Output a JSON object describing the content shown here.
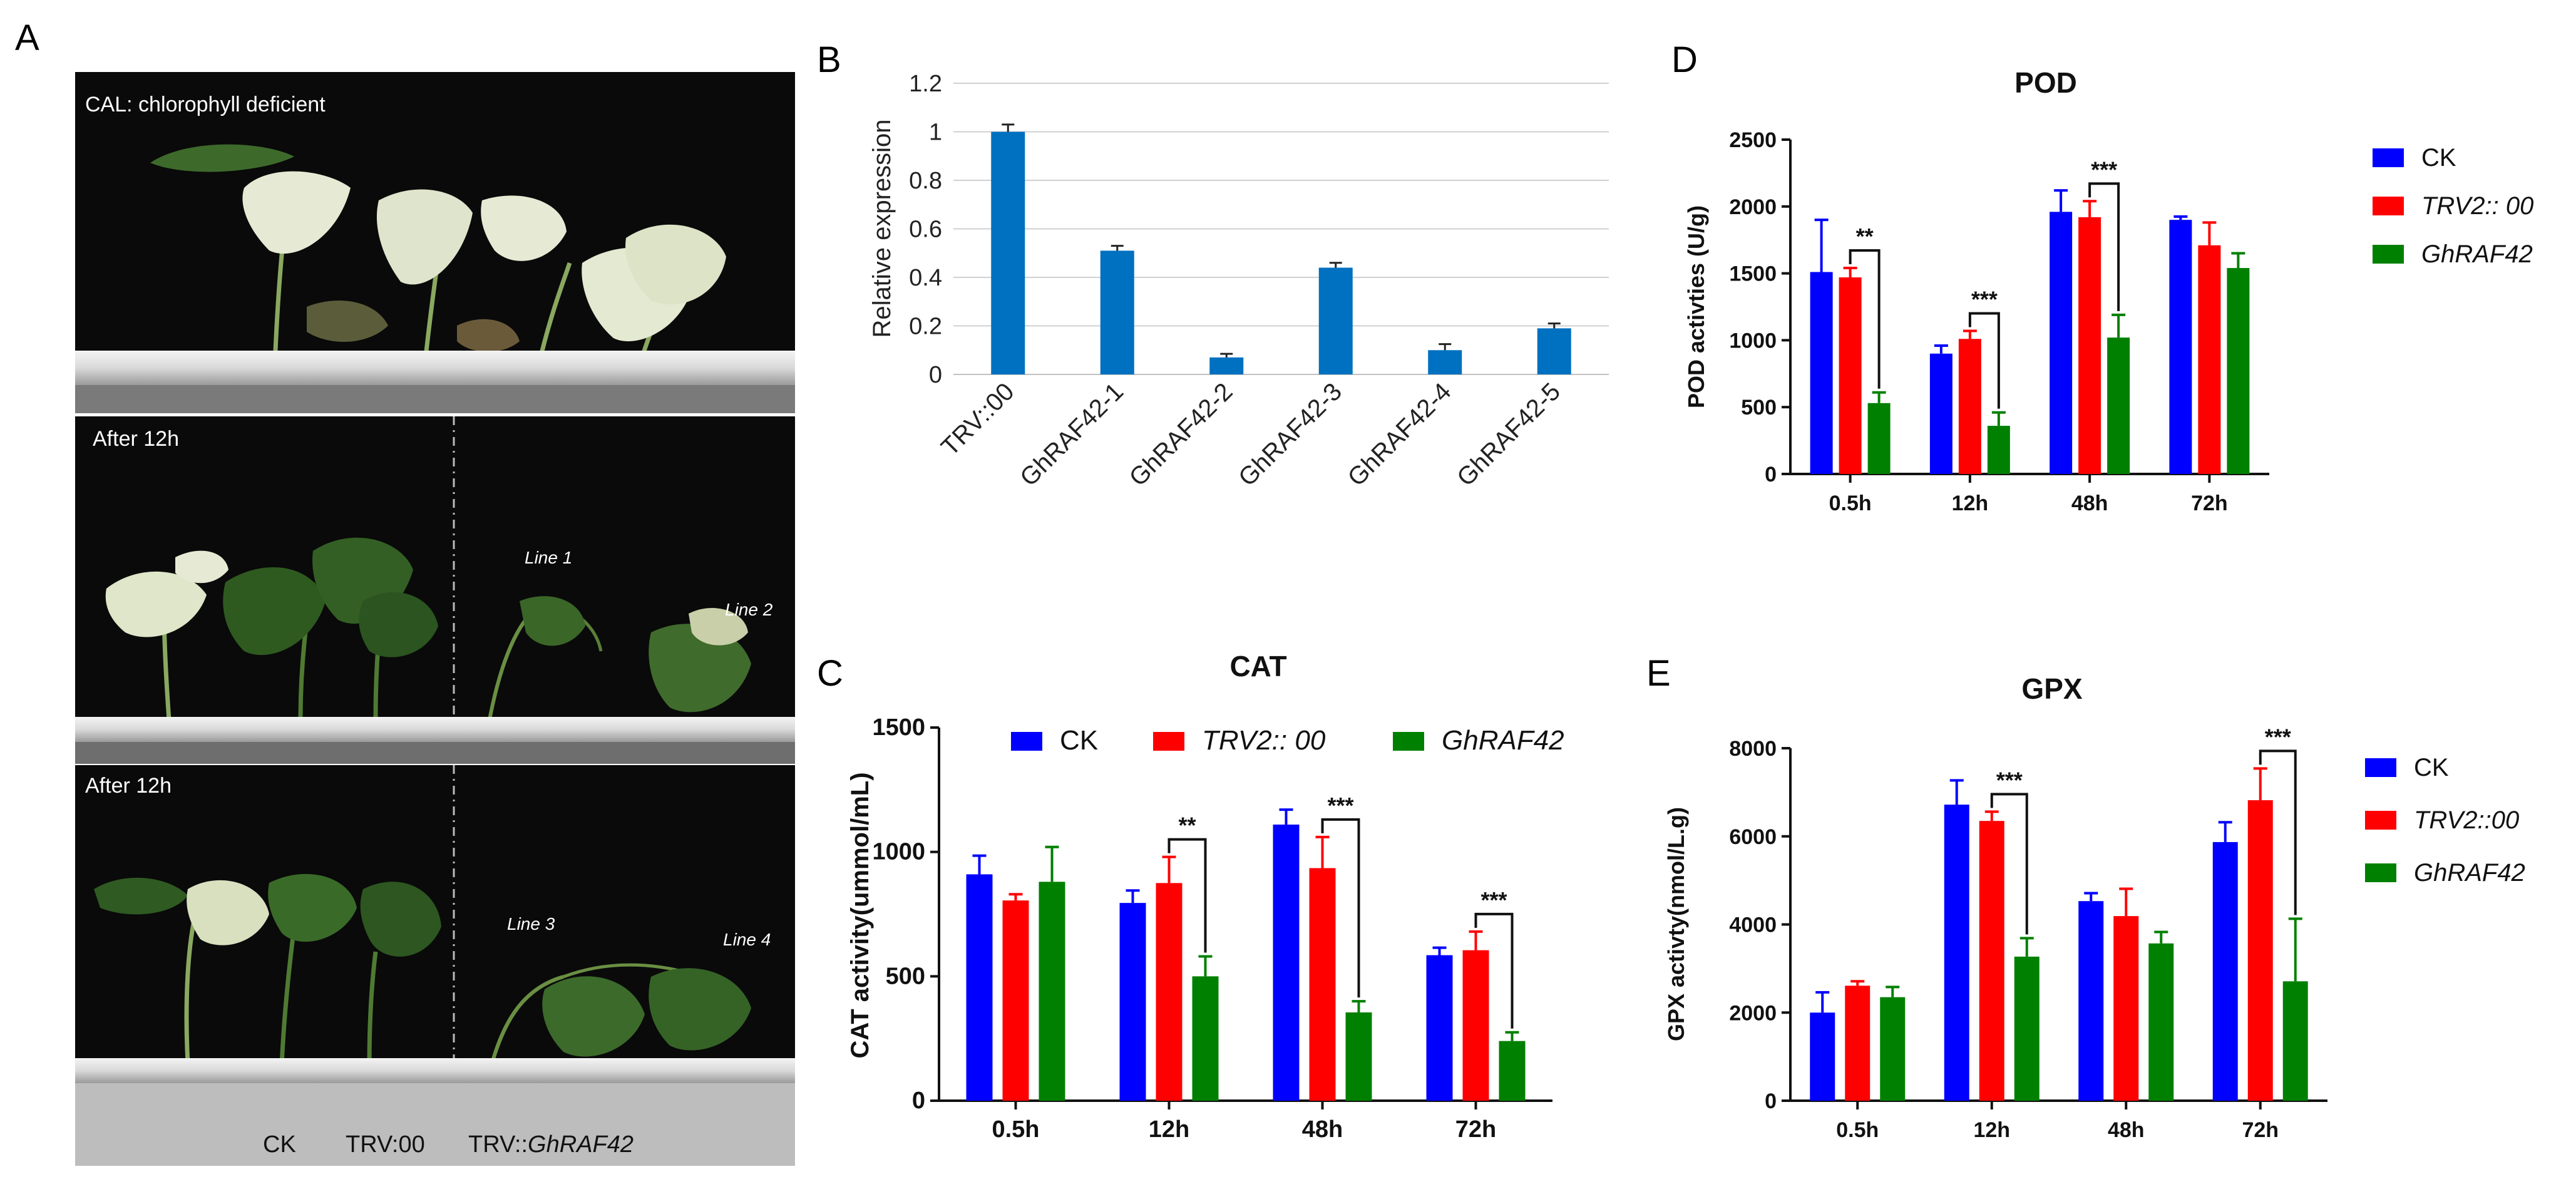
{
  "colors": {
    "ck": "#0000ff",
    "trv": "#ff0000",
    "ghraf": "#008000",
    "bar_b": "#0070c0",
    "photo_bg": "#0c0c0c",
    "leaf_green": "#2f5e22",
    "leaf_variegated": "#e8ecd8"
  },
  "panels": {
    "a": {
      "letter": "A",
      "top_caption": "CAL: chlorophyll  deficient",
      "mid_caption": "After 12h",
      "bottom_caption": "After 12h",
      "line1": "Line 1",
      "line2": "Line 2",
      "line3": "Line 3",
      "line4": "Line 4",
      "label_ck": "CK",
      "label_trv00": "TRV:00",
      "label_trv_prefix": "TRV::",
      "label_trv_gene": "GhRAF42"
    },
    "b": {
      "letter": "B"
    },
    "c": {
      "letter": "C"
    },
    "d": {
      "letter": "D"
    },
    "e": {
      "letter": "E"
    }
  },
  "chart_data": [
    {
      "id": "B",
      "type": "bar",
      "title": "",
      "ylabel": "Relative expression",
      "xlabel": "",
      "ylim": [
        0,
        1.2
      ],
      "yticks": [
        0,
        0.2,
        0.4,
        0.6,
        0.8,
        1,
        1.2
      ],
      "ytick_labels": [
        "0",
        "0.2",
        "0.4",
        "0.6",
        "0.8",
        "1",
        "1.2"
      ],
      "grid": true,
      "categories": [
        "TRV::00",
        "GhRAF42-1",
        "GhRAF42-2",
        "GhRAF42-3",
        "GhRAF42-4",
        "GhRAF42-5"
      ],
      "values": [
        1.0,
        0.51,
        0.07,
        0.44,
        0.1,
        0.19
      ],
      "errors": [
        0.03,
        0.02,
        0.015,
        0.02,
        0.025,
        0.02
      ]
    },
    {
      "id": "C",
      "type": "bar",
      "title": "CAT",
      "ylabel": "CAT activity(ummol/mL)",
      "xlabel": "",
      "ylim": [
        0,
        1500
      ],
      "yticks": [
        0,
        500,
        1000,
        1500
      ],
      "ytick_labels": [
        "0",
        "500",
        "1000",
        "1500"
      ],
      "grid": false,
      "legend_position": "top",
      "categories": [
        "0.5h",
        "12h",
        "48h",
        "72h"
      ],
      "series": [
        {
          "name": "CK",
          "italic": false,
          "values": [
            910,
            795,
            1110,
            585
          ],
          "errors": [
            75,
            50,
            60,
            30
          ]
        },
        {
          "name": "TRV2:: 00",
          "italic": true,
          "values": [
            805,
            875,
            935,
            605
          ],
          "errors": [
            25,
            105,
            125,
            75
          ]
        },
        {
          "name": "GhRAF42",
          "italic": true,
          "values": [
            880,
            500,
            355,
            240
          ],
          "errors": [
            140,
            80,
            45,
            35
          ]
        }
      ],
      "significance": [
        {
          "category": "12h",
          "label": "**"
        },
        {
          "category": "48h",
          "label": "***"
        },
        {
          "category": "72h",
          "label": "***"
        }
      ]
    },
    {
      "id": "D",
      "type": "bar",
      "title": "POD",
      "ylabel": "POD activties (U/g)",
      "xlabel": "",
      "ylim": [
        0,
        2500
      ],
      "yticks": [
        0,
        500,
        1000,
        1500,
        2000,
        2500
      ],
      "ytick_labels": [
        "0",
        "500",
        "1000",
        "1500",
        "2000",
        "2500"
      ],
      "grid": false,
      "legend_position": "right",
      "categories": [
        "0.5h",
        "12h",
        "48h",
        "72h"
      ],
      "series": [
        {
          "name": "CK",
          "italic": false,
          "values": [
            1510,
            900,
            1960,
            1900
          ],
          "errors": [
            390,
            60,
            160,
            25
          ]
        },
        {
          "name": "TRV2:: 00",
          "italic": true,
          "values": [
            1470,
            1010,
            1920,
            1710
          ],
          "errors": [
            70,
            60,
            120,
            170
          ]
        },
        {
          "name": "GhRAF42",
          "italic": true,
          "values": [
            530,
            360,
            1020,
            1540
          ],
          "errors": [
            80,
            100,
            170,
            110
          ]
        }
      ],
      "significance": [
        {
          "category": "0.5h",
          "label": "**"
        },
        {
          "category": "12h",
          "label": "***"
        },
        {
          "category": "48h",
          "label": "***"
        }
      ]
    },
    {
      "id": "E",
      "type": "bar",
      "title": "GPX",
      "ylabel": "GPX activty(nmol/L.g)",
      "xlabel": "",
      "ylim": [
        0,
        8000
      ],
      "yticks": [
        0,
        2000,
        4000,
        6000,
        8000
      ],
      "ytick_labels": [
        "0",
        "2000",
        "4000",
        "6000",
        "8000"
      ],
      "grid": false,
      "legend_position": "right",
      "categories": [
        "0.5h",
        "12h",
        "48h",
        "72h"
      ],
      "series": [
        {
          "name": "CK",
          "italic": false,
          "values": [
            2000,
            6720,
            4530,
            5870
          ],
          "errors": [
            460,
            550,
            180,
            450
          ]
        },
        {
          "name": "TRV2::00",
          "italic": true,
          "values": [
            2610,
            6350,
            4190,
            6820
          ],
          "errors": [
            100,
            210,
            620,
            720
          ]
        },
        {
          "name": "GhRAF42",
          "italic": true,
          "values": [
            2350,
            3270,
            3570,
            2710
          ],
          "errors": [
            230,
            420,
            260,
            1420
          ]
        }
      ],
      "significance": [
        {
          "category": "12h",
          "label": "***"
        },
        {
          "category": "72h",
          "label": "***"
        }
      ]
    }
  ]
}
